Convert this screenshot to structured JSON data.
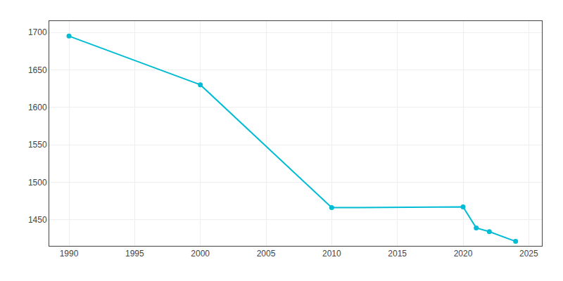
{
  "chart_data": {
    "type": "line",
    "x": [
      1990,
      2000,
      2010,
      2020,
      2021,
      2022,
      2024
    ],
    "values": [
      1695,
      1630,
      1466,
      1467,
      1439,
      1434,
      1421
    ],
    "color": "#00bcd4",
    "marker": "circle",
    "xlim": [
      1988.5,
      2026
    ],
    "ylim": [
      1415,
      1715
    ],
    "xticks": [
      1990,
      1995,
      2000,
      2005,
      2010,
      2015,
      2020,
      2025
    ],
    "yticks": [
      1450,
      1500,
      1550,
      1600,
      1650,
      1700
    ],
    "grid": true
  }
}
